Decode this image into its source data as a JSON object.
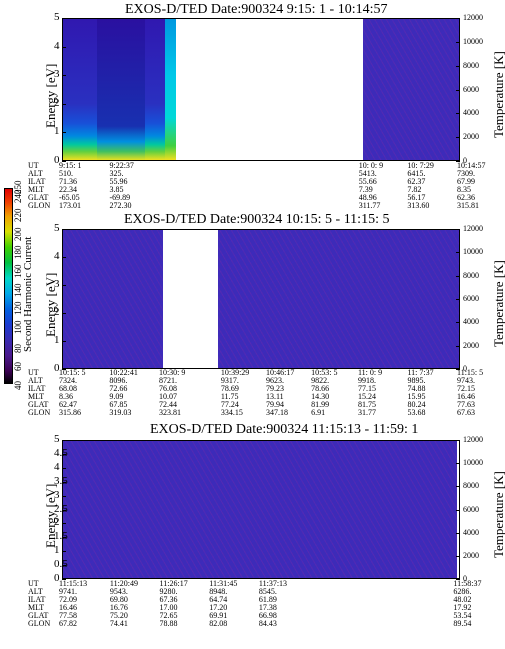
{
  "chart_data": [
    {
      "type": "heatmap",
      "title": "EXOS-D/TED   Date:900324   9:15: 1 - 10:14:57",
      "ylabel": "Energy [eV]",
      "y2label": "Temperature [K]",
      "ylim": [
        0,
        5
      ],
      "yticks": [
        "0",
        "1",
        "2",
        "3",
        "4",
        "5"
      ],
      "y2lim": [
        0,
        12000
      ],
      "y2ticks": [
        "0",
        "2000",
        "4000",
        "6000",
        "8000",
        "10000",
        "12000"
      ],
      "data_ranges": [
        [
          "9:15: 1",
          "9:32:06"
        ],
        [
          "10: 0: 9",
          "10:14:57"
        ]
      ],
      "table_labels": [
        "UT",
        "ALT",
        "ILAT",
        "MLT",
        "GLAT",
        "GLON"
      ],
      "table": [
        [
          "9:15: 1",
          "510.",
          "71.36",
          "22.34",
          "-65.05",
          "173.01"
        ],
        [
          "9:22:37",
          "325.",
          "55.96",
          "3.85",
          "-69.89",
          "272.30"
        ],
        [
          "10: 0: 9",
          "5413.",
          "55.66",
          "7.39",
          "48.96",
          "311.77"
        ],
        [
          "10: 7:29",
          "6415.",
          "62.37",
          "7.82",
          "56.17",
          "313.60"
        ],
        [
          "10:14:57",
          "7309.",
          "67.99",
          "8.35",
          "62.36",
          "315.81"
        ]
      ]
    },
    {
      "type": "heatmap",
      "title": "EXOS-D/TED   Date:900324   10:15: 5 - 11:15: 5",
      "ylabel": "Energy [eV]",
      "y2label": "Temperature [K]",
      "ylim": [
        0,
        5
      ],
      "yticks": [
        "0",
        "1",
        "2",
        "3",
        "4",
        "5"
      ],
      "y2lim": [
        0,
        12000
      ],
      "y2ticks": [
        "0",
        "2000",
        "4000",
        "6000",
        "8000",
        "10000",
        "12000"
      ],
      "data_ranges": [
        [
          "10:15: 5",
          "10:30: 9"
        ],
        [
          "10:38:29",
          "11:15: 5"
        ]
      ],
      "table_labels": [
        "UT",
        "ALT",
        "ILAT",
        "MLT",
        "GLAT",
        "GLON"
      ],
      "table": [
        [
          "10:15: 5",
          "7324.",
          "68.08",
          "8.36",
          "62.47",
          "315.86"
        ],
        [
          "10:22:41",
          "8096.",
          "72.66",
          "9.09",
          "67.85",
          "319.03"
        ],
        [
          "10:30: 9",
          "8721.",
          "76.08",
          "10.07",
          "72.44",
          "323.81"
        ],
        [
          "10:39:29",
          "9317.",
          "78.69",
          "11.75",
          "77.24",
          "334.15"
        ],
        [
          "10:46:17",
          "9623.",
          "79.23",
          "13.11",
          "79.94",
          "347.18"
        ],
        [
          "10:53: 5",
          "9822.",
          "78.66",
          "14.30",
          "81.99",
          "6.91"
        ],
        [
          "11: 0: 9",
          "9918.",
          "77.15",
          "15.24",
          "81.75",
          "31.77"
        ],
        [
          "11: 7:37",
          "9895.",
          "74.88",
          "15.95",
          "80.24",
          "53.68"
        ],
        [
          "11:15: 5",
          "9743.",
          "72.15",
          "16.46",
          "77.63",
          "67.63"
        ]
      ]
    },
    {
      "type": "heatmap",
      "title": "EXOS-D/TED   Date:900324   11:15:13 - 11:59: 1",
      "ylabel": "Energy [eV]",
      "y2label": "Temperature [K]",
      "ylim": [
        0,
        5
      ],
      "yticks": [
        "0",
        "0.5",
        "1",
        "1.5",
        "2",
        "2.5",
        "3",
        "3.5",
        "4",
        "4.5",
        "5"
      ],
      "y2lim": [
        0,
        12000
      ],
      "y2ticks": [
        "0",
        "2000",
        "4000",
        "6000",
        "8000",
        "10000",
        "12000"
      ],
      "data_ranges": [
        [
          "11:15:13",
          "11:58:37"
        ]
      ],
      "table_labels": [
        "UT",
        "ALT",
        "ILAT",
        "MLT",
        "GLAT",
        "GLON"
      ],
      "table": [
        [
          "11:15:13",
          "9741.",
          "72.09",
          "16.46",
          "77.58",
          "67.82"
        ],
        [
          "11:20:49",
          "9543.",
          "69.80",
          "16.76",
          "75.20",
          "74.41"
        ],
        [
          "11:26:17",
          "9280.",
          "67.36",
          "17.00",
          "72.65",
          "78.88"
        ],
        [
          "11:31:45",
          "8948.",
          "64.74",
          "17.20",
          "69.91",
          "82.08"
        ],
        [
          "11:37:13",
          "8545.",
          "61.89",
          "17.38",
          "66.98",
          "84.43"
        ],
        [
          "11:58:37",
          "6286.",
          "48.02",
          "17.92",
          "53.54",
          "89.54"
        ]
      ]
    }
  ],
  "colorbar": {
    "label": "Second Harmonic Current",
    "ticks": [
      "40",
      "60",
      "80",
      "100",
      "120",
      "140",
      "160",
      "180",
      "200",
      "220",
      "240",
      "250"
    ]
  }
}
